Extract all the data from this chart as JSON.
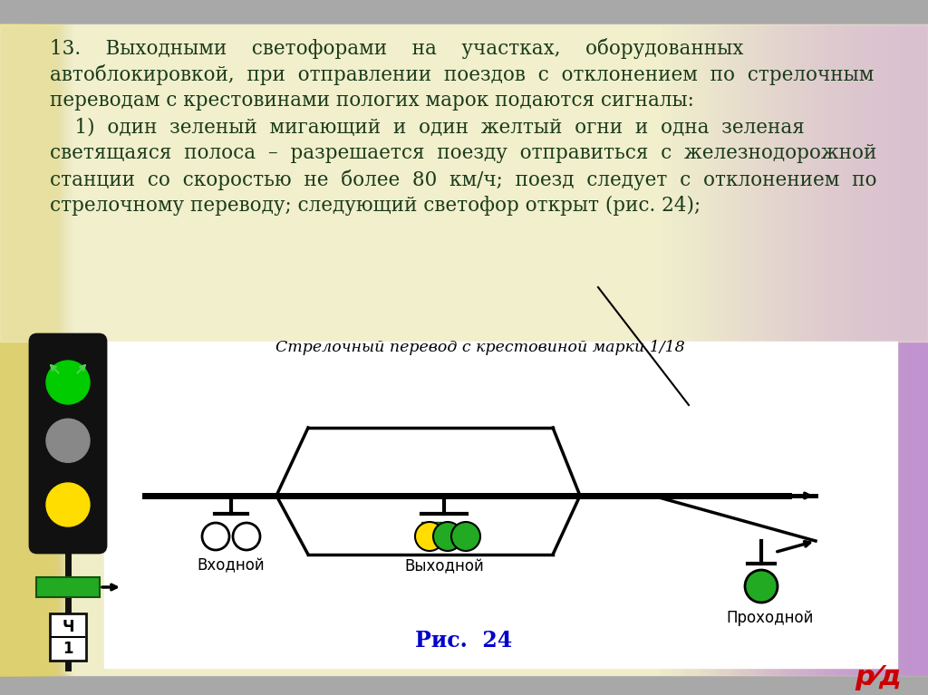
{
  "text_color": "#1a3a1a",
  "fig_caption": "Рис.  24",
  "diagram_label": "Стрелочный перевод с крестовиной марки 1/18",
  "label_vkhodnoy": "Входной",
  "label_vykhodnoy": "Выходной",
  "label_prokhodnoy": "Проходной",
  "rzd_logo_color": "#cc0000",
  "fig_caption_color": "#0000cc",
  "line1": "13.    Выходными    светофорами    на    участках,    оборудованных",
  "line2": "автоблокировкой,  при  отправлении  поездов  с  отклонением  по  стрелочным",
  "line3": "переводам с крестовинами пологих марок подаются сигналы:",
  "line4": "    1)  один  зеленый  мигающий  и  один  желтый  огни  и  одна  зеленая",
  "line5": "светящаяся  полоса  –  разрешается  поезду  отправиться  с  железнодорожной",
  "line6": "станции  со  скоростью  не  более  80  км/ч;  поезд  следует  с  отклонением  по",
  "line7": "стрелочному переводу; следующий светофор открыт (рис. 24);"
}
